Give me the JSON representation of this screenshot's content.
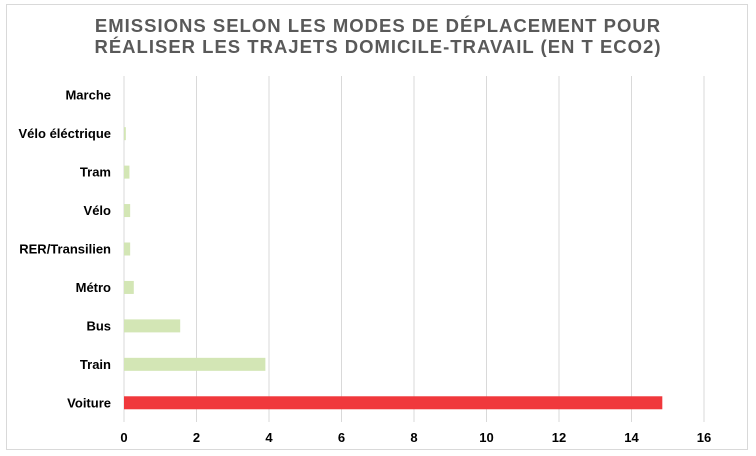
{
  "chart_data": {
    "type": "bar",
    "orientation": "horizontal",
    "title_lines": [
      "EMISSIONS SELON LES MODES DE DÉPLACEMENT POUR",
      "RÉALISER LES TRAJETS DOMICILE-TRAVAIL (EN T ECO2)"
    ],
    "categories": [
      "Marche",
      "Vélo éléctrique",
      "Tram",
      "Vélo",
      "RER/Transilien",
      "Métro",
      "Bus",
      "Train",
      "Voiture"
    ],
    "values": [
      0,
      0.05,
      0.15,
      0.17,
      0.17,
      0.27,
      1.55,
      3.9,
      14.85
    ],
    "bar_colors": [
      "#d3e6b5",
      "#d3e6b5",
      "#d3e6b5",
      "#d3e6b5",
      "#d3e6b5",
      "#d3e6b5",
      "#d3e6b5",
      "#d3e6b5",
      "#f0383c"
    ],
    "xlim": [
      0,
      16
    ],
    "x_ticks": [
      0,
      2,
      4,
      6,
      8,
      10,
      12,
      14,
      16
    ],
    "grid": true,
    "legend": "none"
  }
}
